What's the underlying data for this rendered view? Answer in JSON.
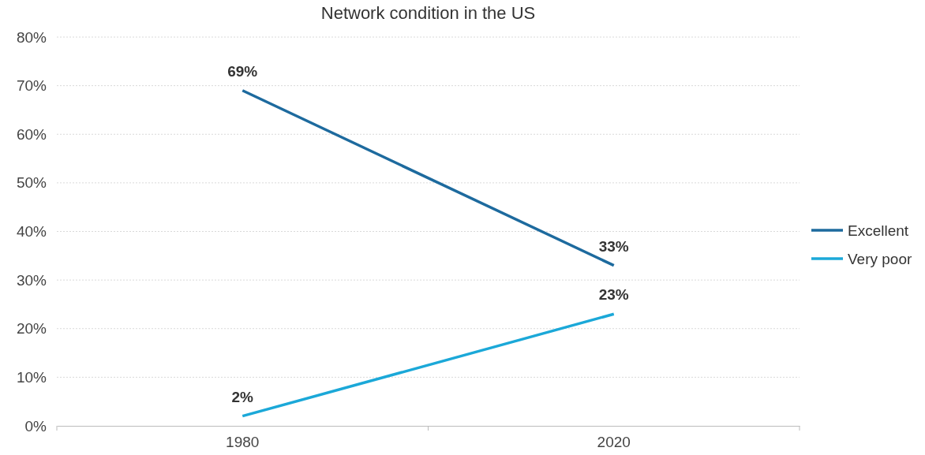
{
  "chart_data": {
    "type": "line",
    "title": "Network condition in the US",
    "categories": [
      "1980",
      "2020"
    ],
    "series": [
      {
        "name": "Excellent",
        "color": "#1d6a9e",
        "values": [
          69,
          33
        ],
        "value_labels": [
          "69%",
          "33%"
        ]
      },
      {
        "name": "Very poor",
        "color": "#1ba8d8",
        "values": [
          2,
          23
        ],
        "value_labels": [
          "2%",
          "23%"
        ]
      }
    ],
    "ylim": [
      0,
      80
    ],
    "yticks": [
      {
        "value": 0,
        "label": "0%"
      },
      {
        "value": 10,
        "label": "10%"
      },
      {
        "value": 20,
        "label": "20%"
      },
      {
        "value": 30,
        "label": "30%"
      },
      {
        "value": 40,
        "label": "40%"
      },
      {
        "value": 50,
        "label": "50%"
      },
      {
        "value": 60,
        "label": "60%"
      },
      {
        "value": 70,
        "label": "70%"
      },
      {
        "value": 80,
        "label": "80%"
      }
    ],
    "grid": "y",
    "legend": "right",
    "marker": "none",
    "line_style": "solid"
  }
}
